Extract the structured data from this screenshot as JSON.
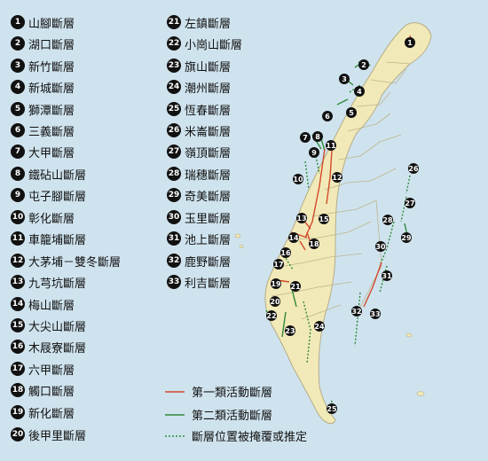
{
  "colors": {
    "sea": "#cfe3ee",
    "land": "#f2e9b8",
    "border": "#b4ad86",
    "type1": "#d24a2a",
    "type2": "#2e8a3a",
    "concealed": "#2e8a3a"
  },
  "legend": {
    "faults": [
      {
        "num": "1",
        "name": "山腳斷層"
      },
      {
        "num": "2",
        "name": "湖口斷層"
      },
      {
        "num": "3",
        "name": "新竹斷層"
      },
      {
        "num": "4",
        "name": "新城斷層"
      },
      {
        "num": "5",
        "name": "獅潭斷層"
      },
      {
        "num": "6",
        "name": "三義斷層"
      },
      {
        "num": "7",
        "name": "大甲斷層"
      },
      {
        "num": "8",
        "name": "鐵砧山斷層"
      },
      {
        "num": "9",
        "name": "屯子腳斷層"
      },
      {
        "num": "10",
        "name": "彰化斷層"
      },
      {
        "num": "11",
        "name": "車籠埔斷層"
      },
      {
        "num": "12",
        "name": "大茅埔－雙冬斷層"
      },
      {
        "num": "13",
        "name": "九芎坑斷層"
      },
      {
        "num": "14",
        "name": "梅山斷層"
      },
      {
        "num": "15",
        "name": "大尖山斷層"
      },
      {
        "num": "16",
        "name": "木屐寮斷層"
      },
      {
        "num": "17",
        "name": "六甲斷層"
      },
      {
        "num": "18",
        "name": "觸口斷層"
      },
      {
        "num": "19",
        "name": "新化斷層"
      },
      {
        "num": "20",
        "name": "後甲里斷層"
      },
      {
        "num": "21",
        "name": "左鎮斷層"
      },
      {
        "num": "22",
        "name": "小崗山斷層"
      },
      {
        "num": "23",
        "name": "旗山斷層"
      },
      {
        "num": "24",
        "name": "潮州斷層"
      },
      {
        "num": "25",
        "name": "恆春斷層"
      },
      {
        "num": "26",
        "name": "米崙斷層"
      },
      {
        "num": "27",
        "name": "嶺頂斷層"
      },
      {
        "num": "28",
        "name": "瑞穗斷層"
      },
      {
        "num": "29",
        "name": "奇美斷層"
      },
      {
        "num": "30",
        "name": "玉里斷層"
      },
      {
        "num": "31",
        "name": "池上斷層"
      },
      {
        "num": "32",
        "name": "鹿野斷層"
      },
      {
        "num": "33",
        "name": "利吉斷層"
      }
    ],
    "keys": {
      "type1": "第一類活動斷層",
      "type2": "第二類活動斷層",
      "concealed": "斷層位置被掩覆或推定"
    }
  }
}
